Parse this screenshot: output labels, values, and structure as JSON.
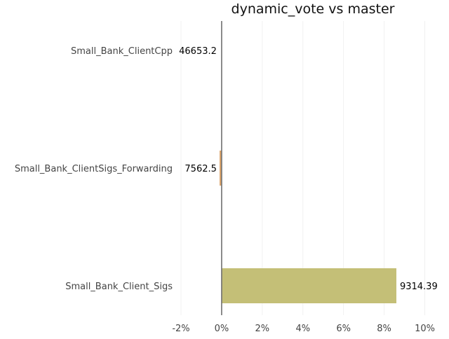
{
  "chart_data": {
    "type": "bar",
    "orientation": "horizontal",
    "title": "dynamic_vote vs master",
    "xlabel": "",
    "ylabel": "",
    "categories": [
      "Small_Bank_ClientCpp",
      "Small_Bank_ClientSigs_Forwarding",
      "Small_Bank_Client_Sigs"
    ],
    "values": [
      0.0,
      -0.1,
      8.6
    ],
    "data_labels": [
      "46653.2",
      "7562.5",
      "9314.39"
    ],
    "bar_colors": [
      "#c9a36e",
      "#d9a26a",
      "#c4bf77"
    ],
    "xlim": [
      -2.0,
      10.5
    ],
    "xticks": [
      -2,
      0,
      2,
      4,
      6,
      8,
      10
    ],
    "xtick_labels": [
      "-2%",
      "0%",
      "2%",
      "4%",
      "6%",
      "8%",
      "10%"
    ],
    "grid": true,
    "legend": "none"
  }
}
